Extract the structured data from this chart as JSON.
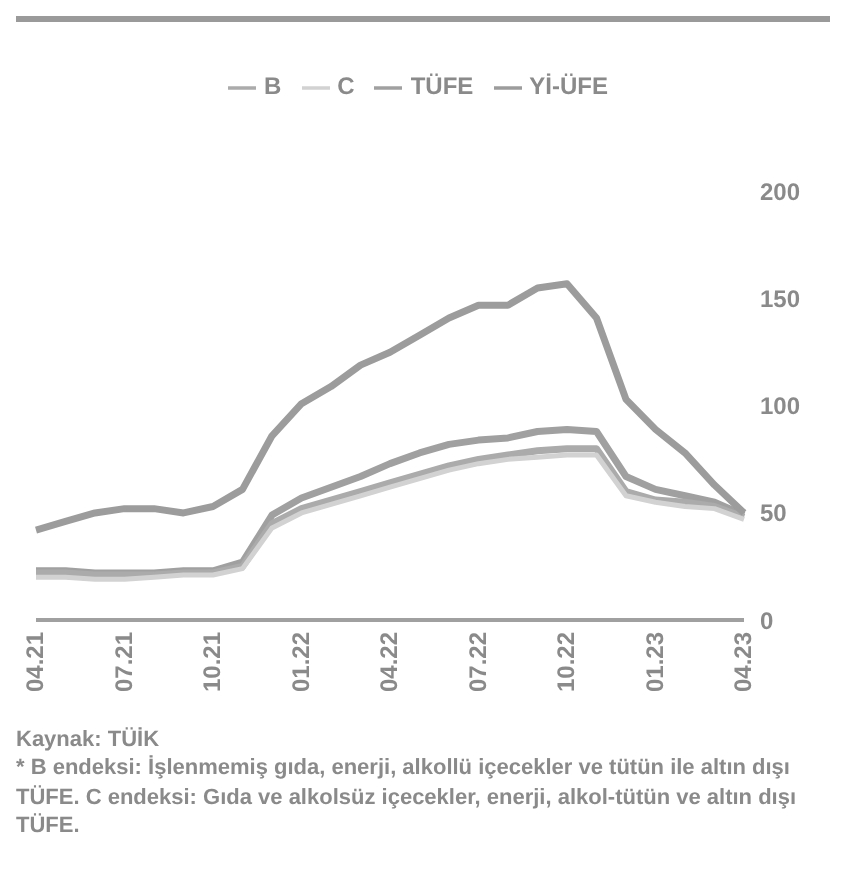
{
  "chart_data": {
    "type": "line",
    "categories": [
      "04.21",
      null,
      null,
      "07.21",
      null,
      null,
      "10.21",
      null,
      null,
      "01.22",
      null,
      null,
      "04.22",
      null,
      null,
      "07.22",
      null,
      null,
      "10.22",
      null,
      null,
      "01.23",
      null,
      null,
      "04.23"
    ],
    "series": [
      {
        "name": "TÜFE",
        "color": "#a0a0a0",
        "values": [
          23,
          23,
          22,
          22,
          22,
          23,
          23,
          27,
          49,
          57,
          62,
          67,
          73,
          78,
          82,
          84,
          85,
          88,
          89,
          88,
          67,
          61,
          58,
          55,
          49
        ]
      },
      {
        "name": "B",
        "color": "#ababab",
        "values": [
          22,
          22,
          21,
          21,
          21,
          22,
          22,
          25,
          45,
          52,
          56,
          60,
          64,
          68,
          72,
          75,
          77,
          79,
          80,
          80,
          60,
          56,
          55,
          53,
          48
        ]
      },
      {
        "name": "C",
        "color": "#d2d2d2",
        "values": [
          20,
          20,
          19,
          19,
          20,
          21,
          21,
          24,
          43,
          50,
          54,
          58,
          62,
          66,
          70,
          73,
          75,
          76,
          77,
          77,
          58,
          55,
          53,
          52,
          47
        ]
      },
      {
        "name": "Yİ-ÜFE",
        "color": "#9c9c9c",
        "values": [
          42,
          46,
          50,
          52,
          52,
          50,
          53,
          61,
          86,
          101,
          109,
          119,
          125,
          133,
          141,
          147,
          147,
          155,
          157,
          141,
          103,
          89,
          78,
          63,
          50
        ]
      }
    ],
    "ylim": [
      0,
      200
    ],
    "yticks": [
      0,
      50,
      100,
      150,
      200
    ],
    "legend": "top",
    "marker": "none",
    "line_style": "solid",
    "annotations": [
      "Kaynak: TÜİK",
      "* B endeksi: İşlenmemiş gıda, enerji, alkollü içecekler ve tütün ile altın dışı TÜFE. C endeksi: Gıda ve alkolsüz içecekler, enerji, alkol-tütün ve altın dışı TÜFE."
    ]
  }
}
